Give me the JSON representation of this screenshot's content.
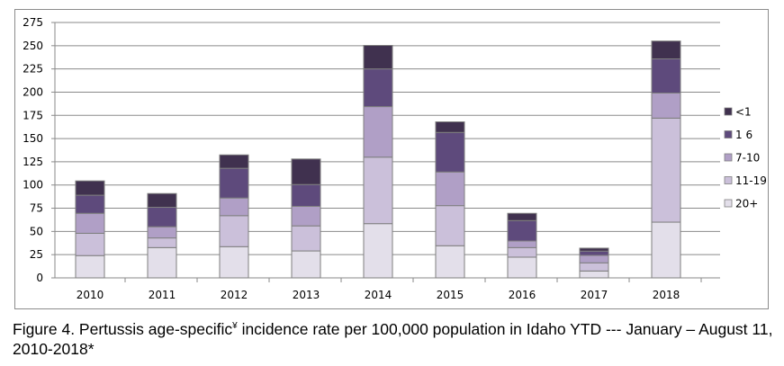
{
  "chart_data": {
    "type": "bar",
    "stacked": true,
    "title": "",
    "xlabel": "",
    "ylabel": "",
    "ylim": [
      0,
      275
    ],
    "yticks": [
      0,
      25,
      50,
      75,
      100,
      125,
      150,
      175,
      200,
      225,
      250,
      275
    ],
    "grid": true,
    "legend_position": "right",
    "categories": [
      "2010",
      "2011",
      "2012",
      "2013",
      "2014",
      "2015",
      "2016",
      "2017",
      "2018"
    ],
    "series": [
      {
        "name": "20+",
        "color": "#e3dfea",
        "values": [
          24,
          32.6,
          33.6,
          29,
          58.4,
          34.6,
          22.3,
          7.4,
          60
        ]
      },
      {
        "name": "11-19",
        "color": "#cbc0da",
        "values": [
          24,
          10.4,
          33.4,
          27,
          71.6,
          43.2,
          10.3,
          8.8,
          112
        ]
      },
      {
        "name": "7-10",
        "color": "#b09fc6",
        "values": [
          21.5,
          12,
          19,
          21,
          54.4,
          36.2,
          7.1,
          8,
          27
        ]
      },
      {
        "name": "1 6",
        "color": "#5e4a7c",
        "values": [
          19.5,
          21,
          32,
          23.5,
          40.6,
          42.6,
          22,
          4.6,
          36.8
        ]
      },
      {
        "name": "<1",
        "color": "#40314f",
        "values": [
          15.4,
          14.8,
          14.4,
          27.5,
          25.3,
          11.4,
          7.8,
          3.2,
          19.2
        ]
      }
    ],
    "legend_order": [
      "<1",
      "1 6",
      "7-10",
      "11-19",
      "20+"
    ]
  },
  "caption": {
    "part1": "Figure 4. Pertussis age-specific",
    "superscript": "¥",
    "part2": " incidence rate per 100,000 population in Idaho YTD --- January – August 11, 2010-2018*"
  }
}
